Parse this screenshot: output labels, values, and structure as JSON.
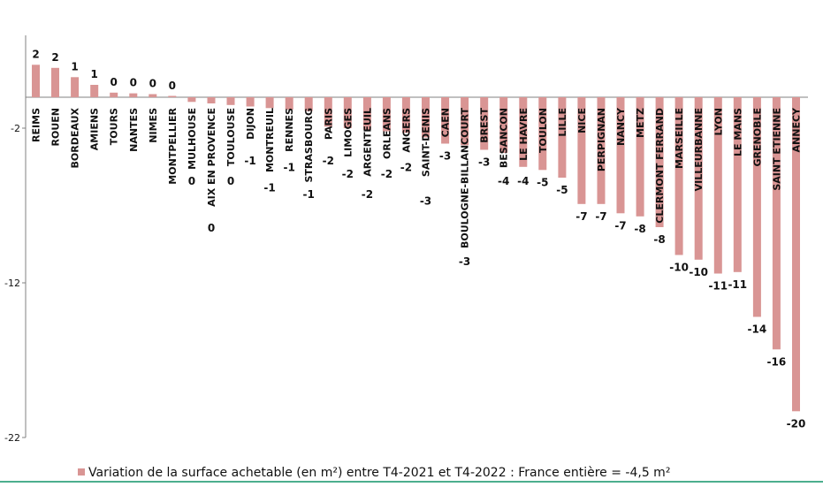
{
  "chart_data": {
    "type": "bar",
    "categories": [
      "REIMS",
      "ROUEN",
      "BORDEAUX",
      "AMIENS",
      "TOURS",
      "NANTES",
      "NIMES",
      "MONTPELLIER",
      "MULHOUSE",
      "AIX EN PROVENCE",
      "TOULOUSE",
      "DIJON",
      "MONTREUIL",
      "RENNES",
      "STRASBOURG",
      "PARIS",
      "LIMOGES",
      "ARGENTEUIL",
      "ORLEANS",
      "ANGERS",
      "SAINT-DENIS",
      "CAEN",
      "BOULOGNE-BILLANCOURT",
      "BREST",
      "BESANCON",
      "LE HAVRE",
      "TOULON",
      "LILLE",
      "NICE",
      "PERPIGNAN",
      "NANCY",
      "METZ",
      "CLERMONT FERRAND",
      "MARSEILLE",
      "VILLEURBANNE",
      "LYON",
      "LE MANS",
      "GRENOBLE",
      "SAINT ETIENNE",
      "ANNECY"
    ],
    "series": [
      {
        "name": "Variation de la surface achetable (en m²) entre T4-2021 et T4-2022 : France entière = -4,5 m²",
        "values": [
          2.1,
          1.9,
          1.3,
          0.8,
          0.3,
          0.25,
          0.2,
          0.05,
          -0.3,
          -0.4,
          -0.5,
          -0.6,
          -0.7,
          -0.8,
          -0.9,
          -1.9,
          -2.0,
          -2.1,
          -2.2,
          -2.3,
          -2.6,
          -3.0,
          -3.1,
          -3.4,
          -3.6,
          -4.5,
          -4.7,
          -5.2,
          -6.9,
          -6.9,
          -7.5,
          -7.7,
          -8.4,
          -10.2,
          -10.5,
          -11.4,
          -11.3,
          -14.2,
          -16.3,
          -20.3
        ],
        "labels": [
          "2",
          "2",
          "1",
          "1",
          "0",
          "0",
          "0",
          "0",
          "0",
          "0",
          "0",
          "-1",
          "-1",
          "-1",
          "-1",
          "-2",
          "-2",
          "-2",
          "-2",
          "-2",
          "-3",
          "-3",
          "-3",
          "-3",
          "-4",
          "-4",
          "-5",
          "-5",
          "-7",
          "-7",
          "-7",
          "-8",
          "-8",
          "-10",
          "-10",
          "-11",
          "-11",
          "-14",
          "-16",
          "-20"
        ]
      }
    ],
    "ylim": [
      -22,
      4
    ],
    "yticks": [
      -2,
      -12,
      -22
    ],
    "ytick_labels": [
      "-2",
      "-12",
      "-22"
    ],
    "legend": "bottom",
    "grid": false,
    "bar_color": "#d99594",
    "title": "",
    "xlabel": "",
    "ylabel": ""
  }
}
